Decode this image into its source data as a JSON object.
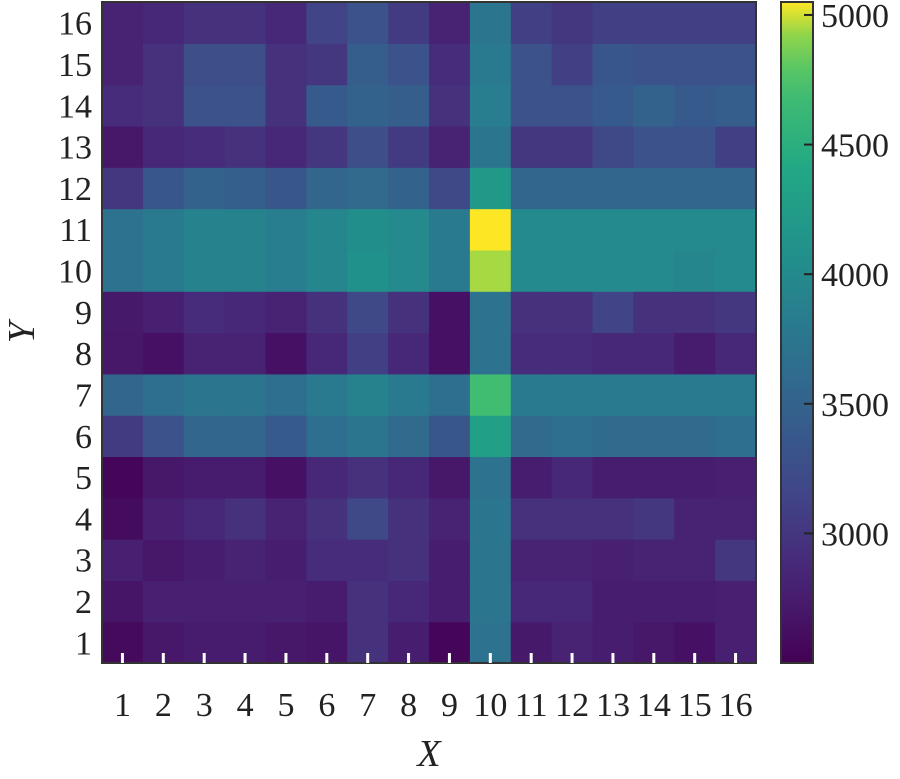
{
  "chart_data": {
    "type": "heatmap",
    "title": "",
    "xlabel": "X",
    "ylabel": "Y",
    "x": [
      1,
      2,
      3,
      4,
      5,
      6,
      7,
      8,
      9,
      10,
      11,
      12,
      13,
      14,
      15,
      16
    ],
    "y": [
      1,
      2,
      3,
      4,
      5,
      6,
      7,
      8,
      9,
      10,
      11,
      12,
      13,
      14,
      15,
      16
    ],
    "x_tick_labels": [
      "1",
      "2",
      "3",
      "4",
      "5",
      "6",
      "7",
      "8",
      "9",
      "10",
      "11",
      "12",
      "13",
      "14",
      "15",
      "16"
    ],
    "y_tick_labels": [
      "1",
      "2",
      "3",
      "4",
      "5",
      "6",
      "7",
      "8",
      "9",
      "10",
      "11",
      "12",
      "13",
      "14",
      "15",
      "16"
    ],
    "colormap": "viridis",
    "colorbar": {
      "vmin": 2500,
      "vmax": 5050,
      "ticks": [
        3000,
        3500,
        4000,
        4500,
        5000
      ],
      "tick_labels": [
        "3000",
        "3500",
        "4000",
        "4500",
        "5000"
      ]
    },
    "values": [
      [
        2580,
        2700,
        2750,
        2750,
        2700,
        2680,
        2950,
        2760,
        2550,
        3700,
        2720,
        2800,
        2760,
        2700,
        2650,
        2780
      ],
      [
        2680,
        2780,
        2780,
        2780,
        2780,
        2750,
        2950,
        2850,
        2760,
        3750,
        2850,
        2850,
        2760,
        2760,
        2760,
        2780
      ],
      [
        2780,
        2700,
        2760,
        2800,
        2760,
        2900,
        2900,
        2950,
        2760,
        3750,
        2800,
        2800,
        2780,
        2800,
        2800,
        3000
      ],
      [
        2600,
        2780,
        2850,
        2950,
        2800,
        2950,
        3200,
        2950,
        2800,
        3750,
        2950,
        2950,
        2950,
        3000,
        2800,
        2800
      ],
      [
        2550,
        2700,
        2750,
        2750,
        2650,
        2850,
        2950,
        2850,
        2700,
        3700,
        2760,
        2850,
        2760,
        2760,
        2760,
        2780
      ],
      [
        3050,
        3300,
        3550,
        3550,
        3400,
        3650,
        3750,
        3600,
        3350,
        4300,
        3600,
        3650,
        3600,
        3600,
        3600,
        3650
      ],
      [
        3550,
        3650,
        3750,
        3750,
        3650,
        3800,
        3900,
        3800,
        3650,
        4700,
        3800,
        3800,
        3800,
        3800,
        3800,
        3800
      ],
      [
        2700,
        2650,
        2800,
        2800,
        2650,
        2850,
        3100,
        2850,
        2650,
        3700,
        2900,
        2900,
        2850,
        2850,
        2750,
        2850
      ],
      [
        2720,
        2780,
        2900,
        2850,
        2800,
        2950,
        3200,
        2950,
        2650,
        3700,
        2950,
        2950,
        3150,
        2950,
        2950,
        3000
      ],
      [
        3700,
        3800,
        3900,
        3900,
        3850,
        3950,
        4100,
        4000,
        3800,
        4950,
        4000,
        4000,
        4000,
        4000,
        3950,
        4000
      ],
      [
        3700,
        3800,
        3900,
        3900,
        3850,
        3950,
        4050,
        4000,
        3800,
        5050,
        4000,
        4000,
        4000,
        4000,
        4000,
        4000
      ],
      [
        3000,
        3350,
        3500,
        3450,
        3350,
        3550,
        3600,
        3500,
        3200,
        4200,
        3550,
        3550,
        3550,
        3550,
        3550,
        3550
      ],
      [
        2700,
        2850,
        2900,
        2950,
        2850,
        3000,
        3250,
        3050,
        2800,
        3750,
        3000,
        3000,
        3200,
        3300,
        3300,
        3100
      ],
      [
        2900,
        2950,
        3300,
        3300,
        2950,
        3400,
        3500,
        3450,
        2950,
        3850,
        3300,
        3300,
        3400,
        3500,
        3400,
        3450
      ],
      [
        2800,
        2950,
        3250,
        3250,
        2950,
        3000,
        3450,
        3300,
        2900,
        3800,
        3300,
        3100,
        3350,
        3300,
        3300,
        3300
      ],
      [
        2800,
        2850,
        2950,
        2950,
        2850,
        3150,
        3300,
        3050,
        2800,
        3750,
        3100,
        3000,
        3100,
        3100,
        3100,
        3100
      ]
    ]
  }
}
